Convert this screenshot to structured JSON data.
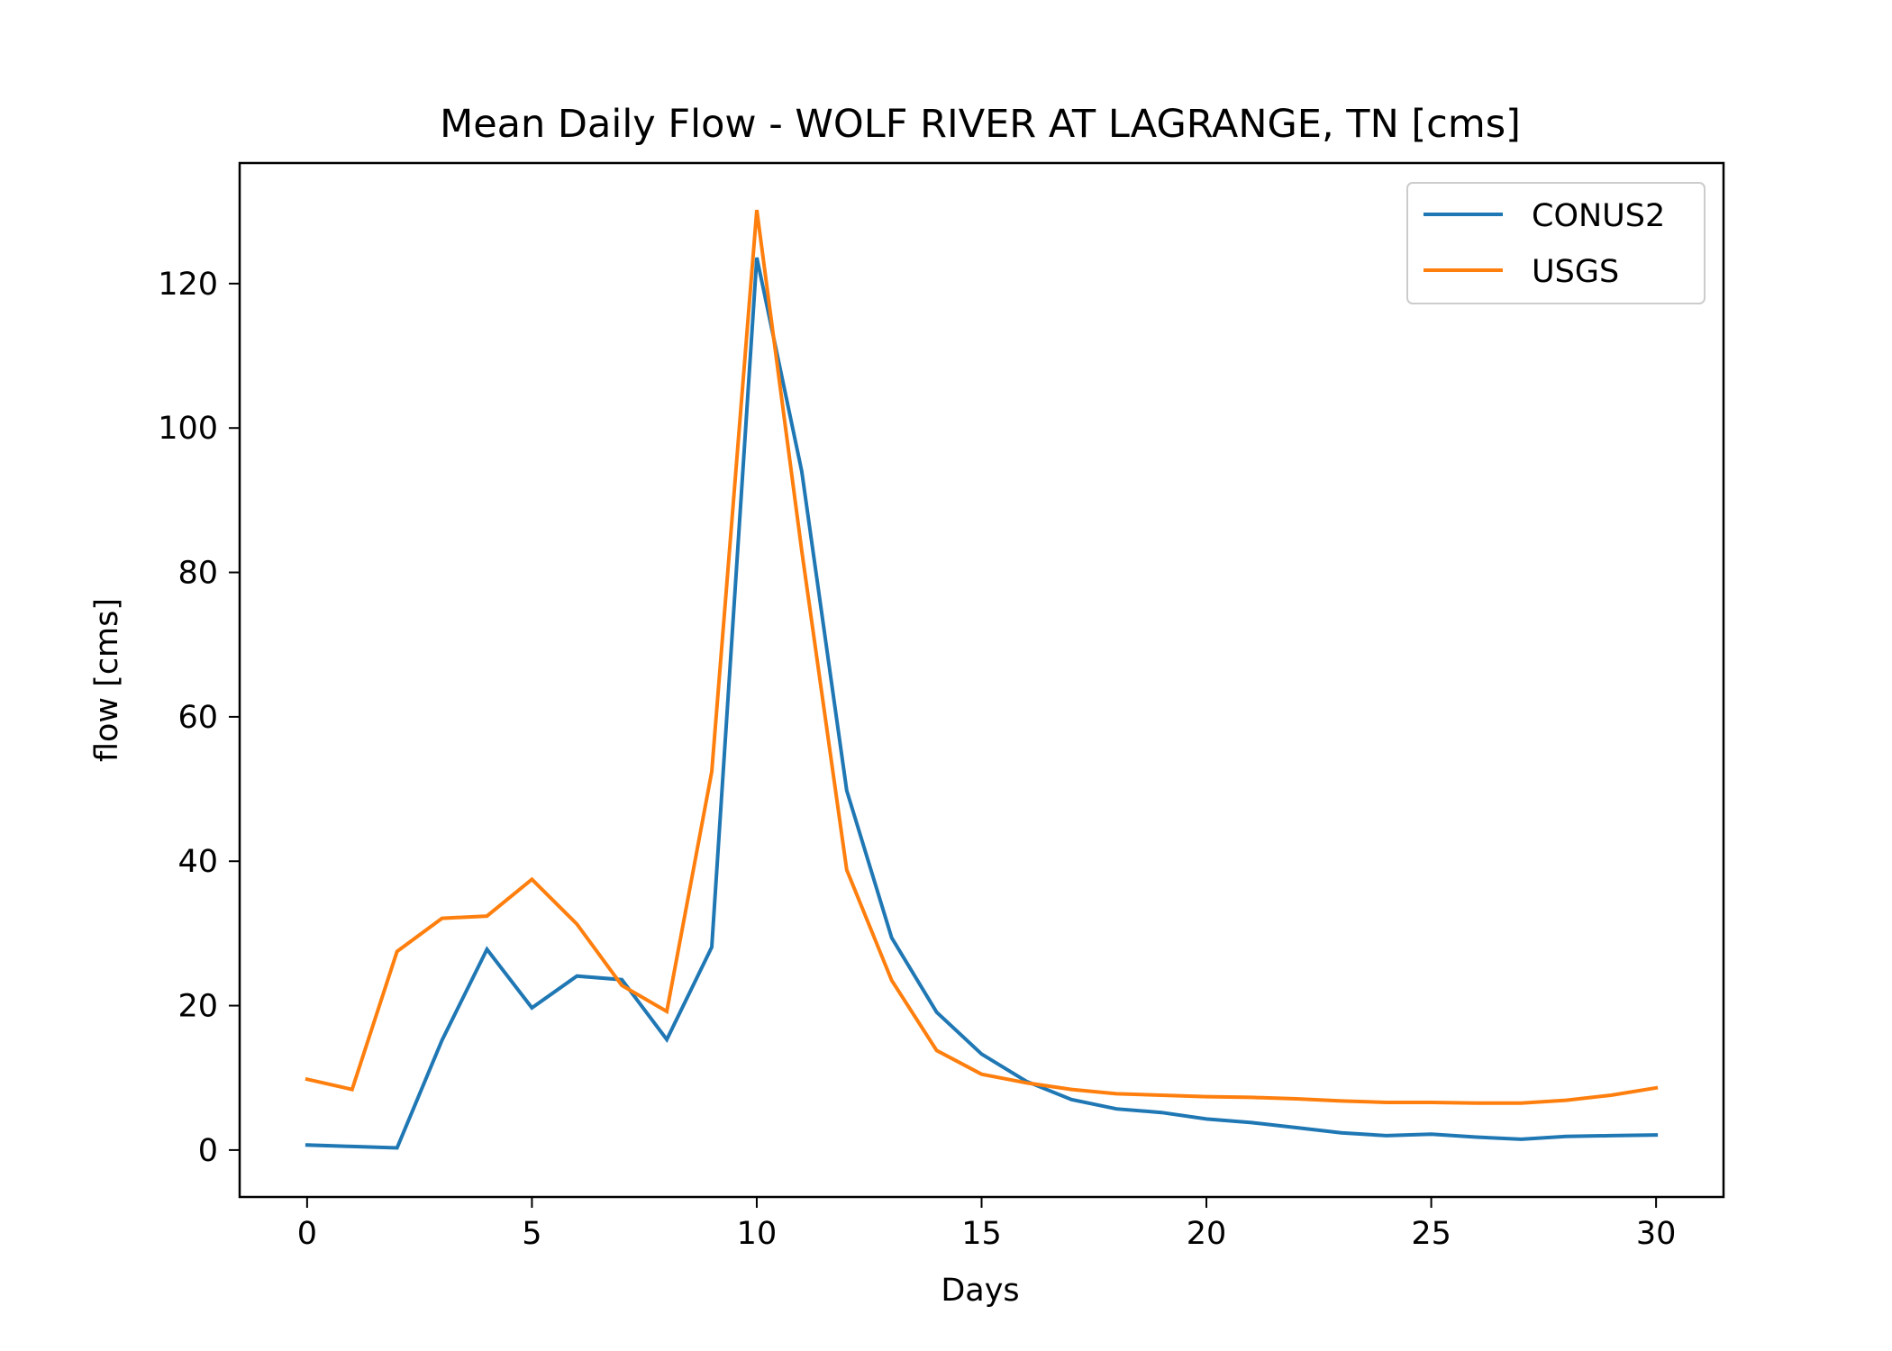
{
  "chart_data": {
    "type": "line",
    "title": "Mean Daily Flow - WOLF RIVER AT LAGRANGE, TN [cms]",
    "xlabel": "Days",
    "ylabel": "flow [cms]",
    "xlim": [
      -1.5,
      31.5
    ],
    "ylim": [
      -6.5,
      136.7
    ],
    "xticks": [
      0,
      5,
      10,
      15,
      20,
      25,
      30
    ],
    "yticks": [
      0,
      20,
      40,
      60,
      80,
      100,
      120
    ],
    "grid": false,
    "legend": "top-right",
    "x": [
      0,
      1,
      2,
      3,
      4,
      5,
      6,
      7,
      8,
      9,
      10,
      11,
      12,
      13,
      14,
      15,
      16,
      17,
      18,
      19,
      20,
      21,
      22,
      23,
      24,
      25,
      26,
      27,
      28,
      29,
      30
    ],
    "series": [
      {
        "name": "CONUS2",
        "color": "#1f77b4",
        "values": [
          0.7,
          0.5,
          0.3,
          15.2,
          27.8,
          19.7,
          24.1,
          23.6,
          15.3,
          28.1,
          123.6,
          94.0,
          49.8,
          29.4,
          19.1,
          13.3,
          9.5,
          7.0,
          5.7,
          5.2,
          4.3,
          3.8,
          3.1,
          2.4,
          2.0,
          2.2,
          1.8,
          1.5,
          1.9,
          2.0,
          2.1
        ]
      },
      {
        "name": "USGS",
        "color": "#ff7f0e",
        "values": [
          9.8,
          8.4,
          27.5,
          32.1,
          32.4,
          37.5,
          31.3,
          22.8,
          19.2,
          52.4,
          130.2,
          83.0,
          38.8,
          23.5,
          13.8,
          10.5,
          9.3,
          8.4,
          7.8,
          7.6,
          7.4,
          7.3,
          7.1,
          6.8,
          6.6,
          6.6,
          6.5,
          6.5,
          6.9,
          7.6,
          8.6
        ]
      }
    ]
  }
}
